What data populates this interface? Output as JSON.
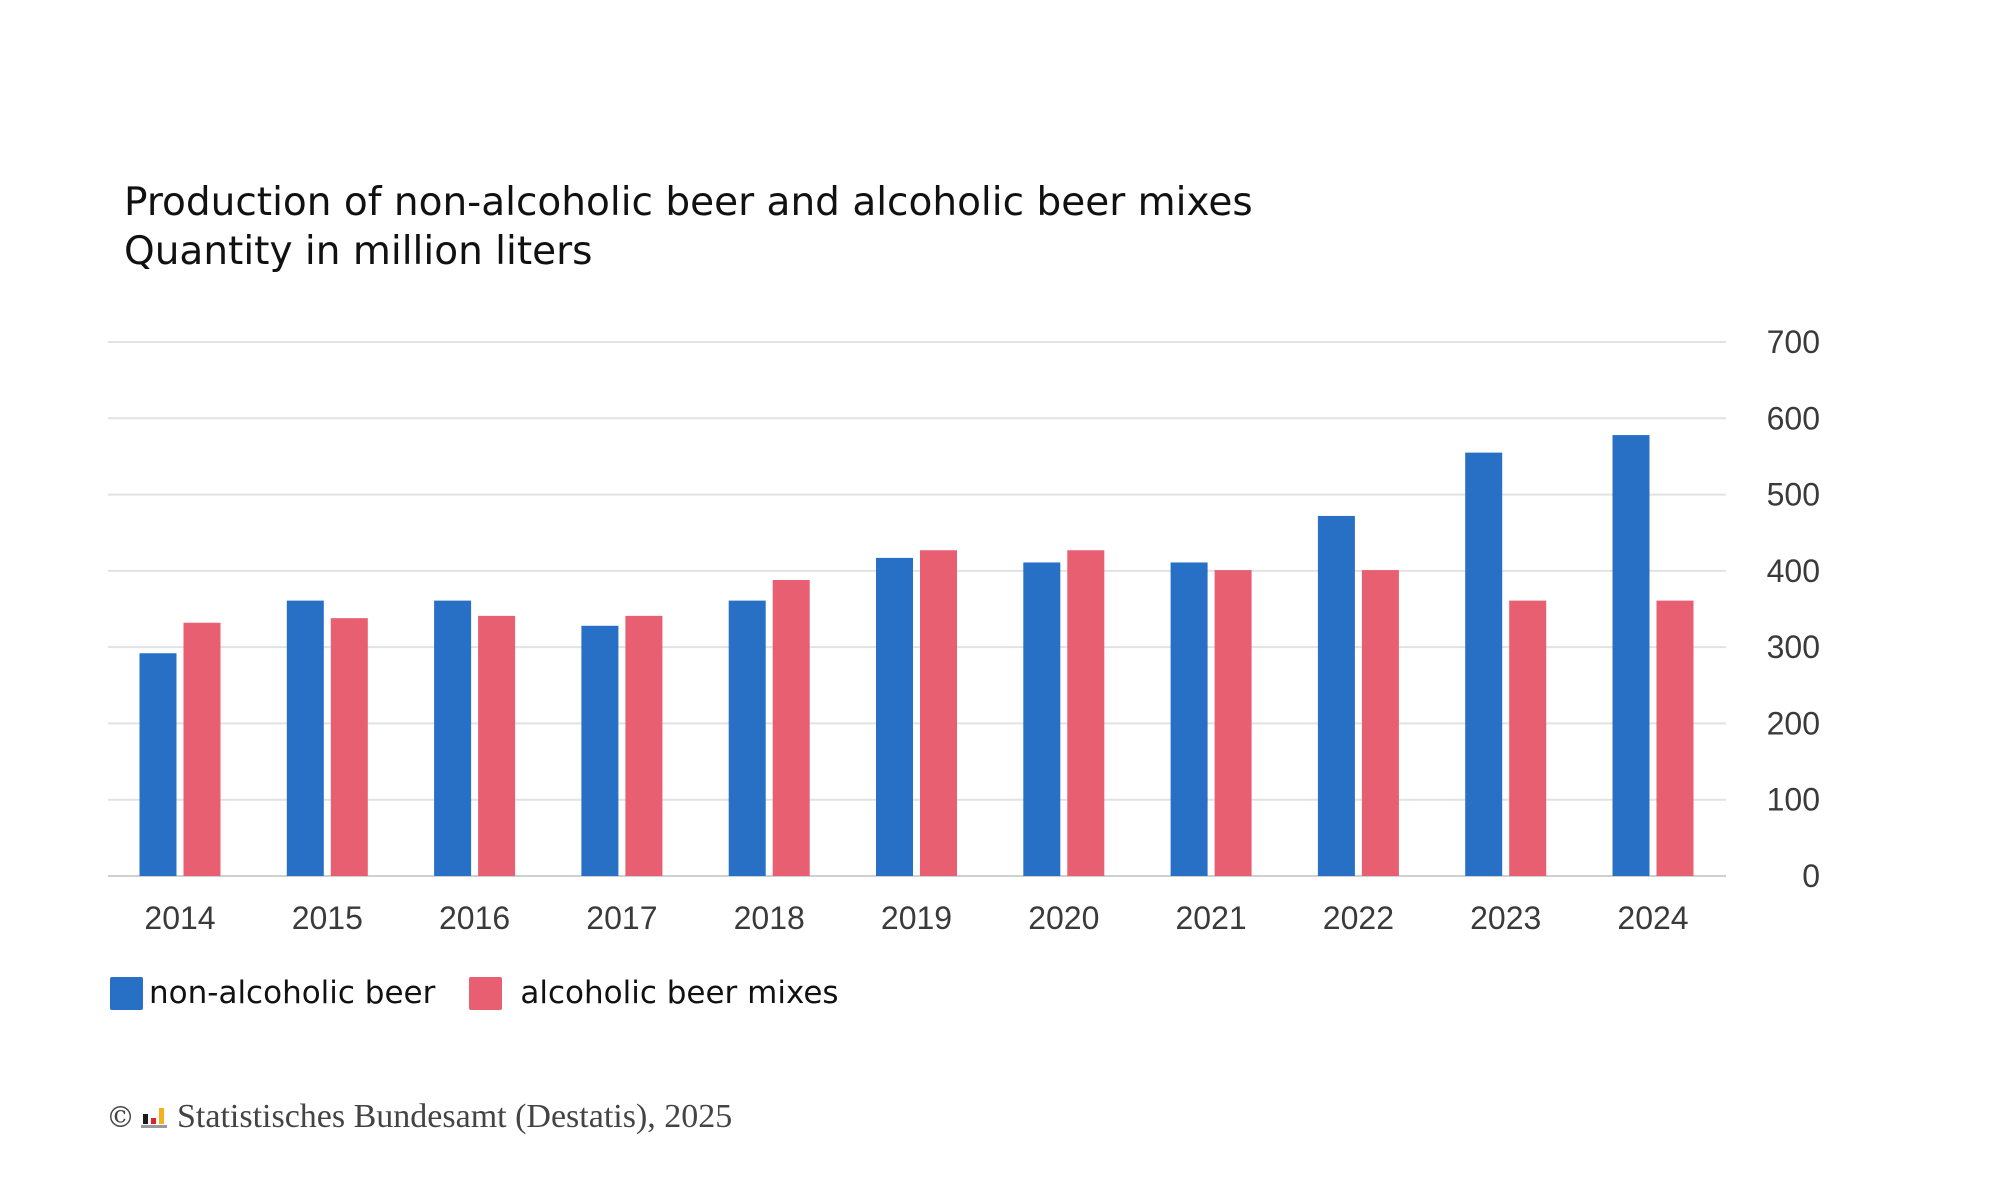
{
  "chart_data": {
    "type": "bar",
    "title": "Production of non-alcoholic beer and alcoholic beer mixes",
    "subtitle": "Quantity in million liters",
    "categories": [
      "2014",
      "2015",
      "2016",
      "2017",
      "2018",
      "2019",
      "2020",
      "2021",
      "2022",
      "2023",
      "2024"
    ],
    "series": [
      {
        "name": "non-alcoholic beer",
        "color": "#2870C6",
        "values": [
          292,
          361,
          361,
          328,
          361,
          417,
          411,
          411,
          472,
          555,
          578
        ]
      },
      {
        "name": "alcoholic beer mixes",
        "color": "#E85F72",
        "values": [
          332,
          338,
          341,
          341,
          388,
          427,
          427,
          401,
          401,
          361,
          361
        ]
      }
    ],
    "ylim": [
      0,
      700
    ],
    "yticks": [
      0,
      100,
      200,
      300,
      400,
      500,
      600,
      700
    ],
    "y_axis_side": "right",
    "grid": true,
    "legend": "bottom-left",
    "xlabel": "",
    "ylabel": ""
  },
  "footer": {
    "copyright_symbol": "©",
    "logo": "destatis-logo-icon",
    "source": "Statistisches Bundesamt (Destatis), 2025"
  }
}
